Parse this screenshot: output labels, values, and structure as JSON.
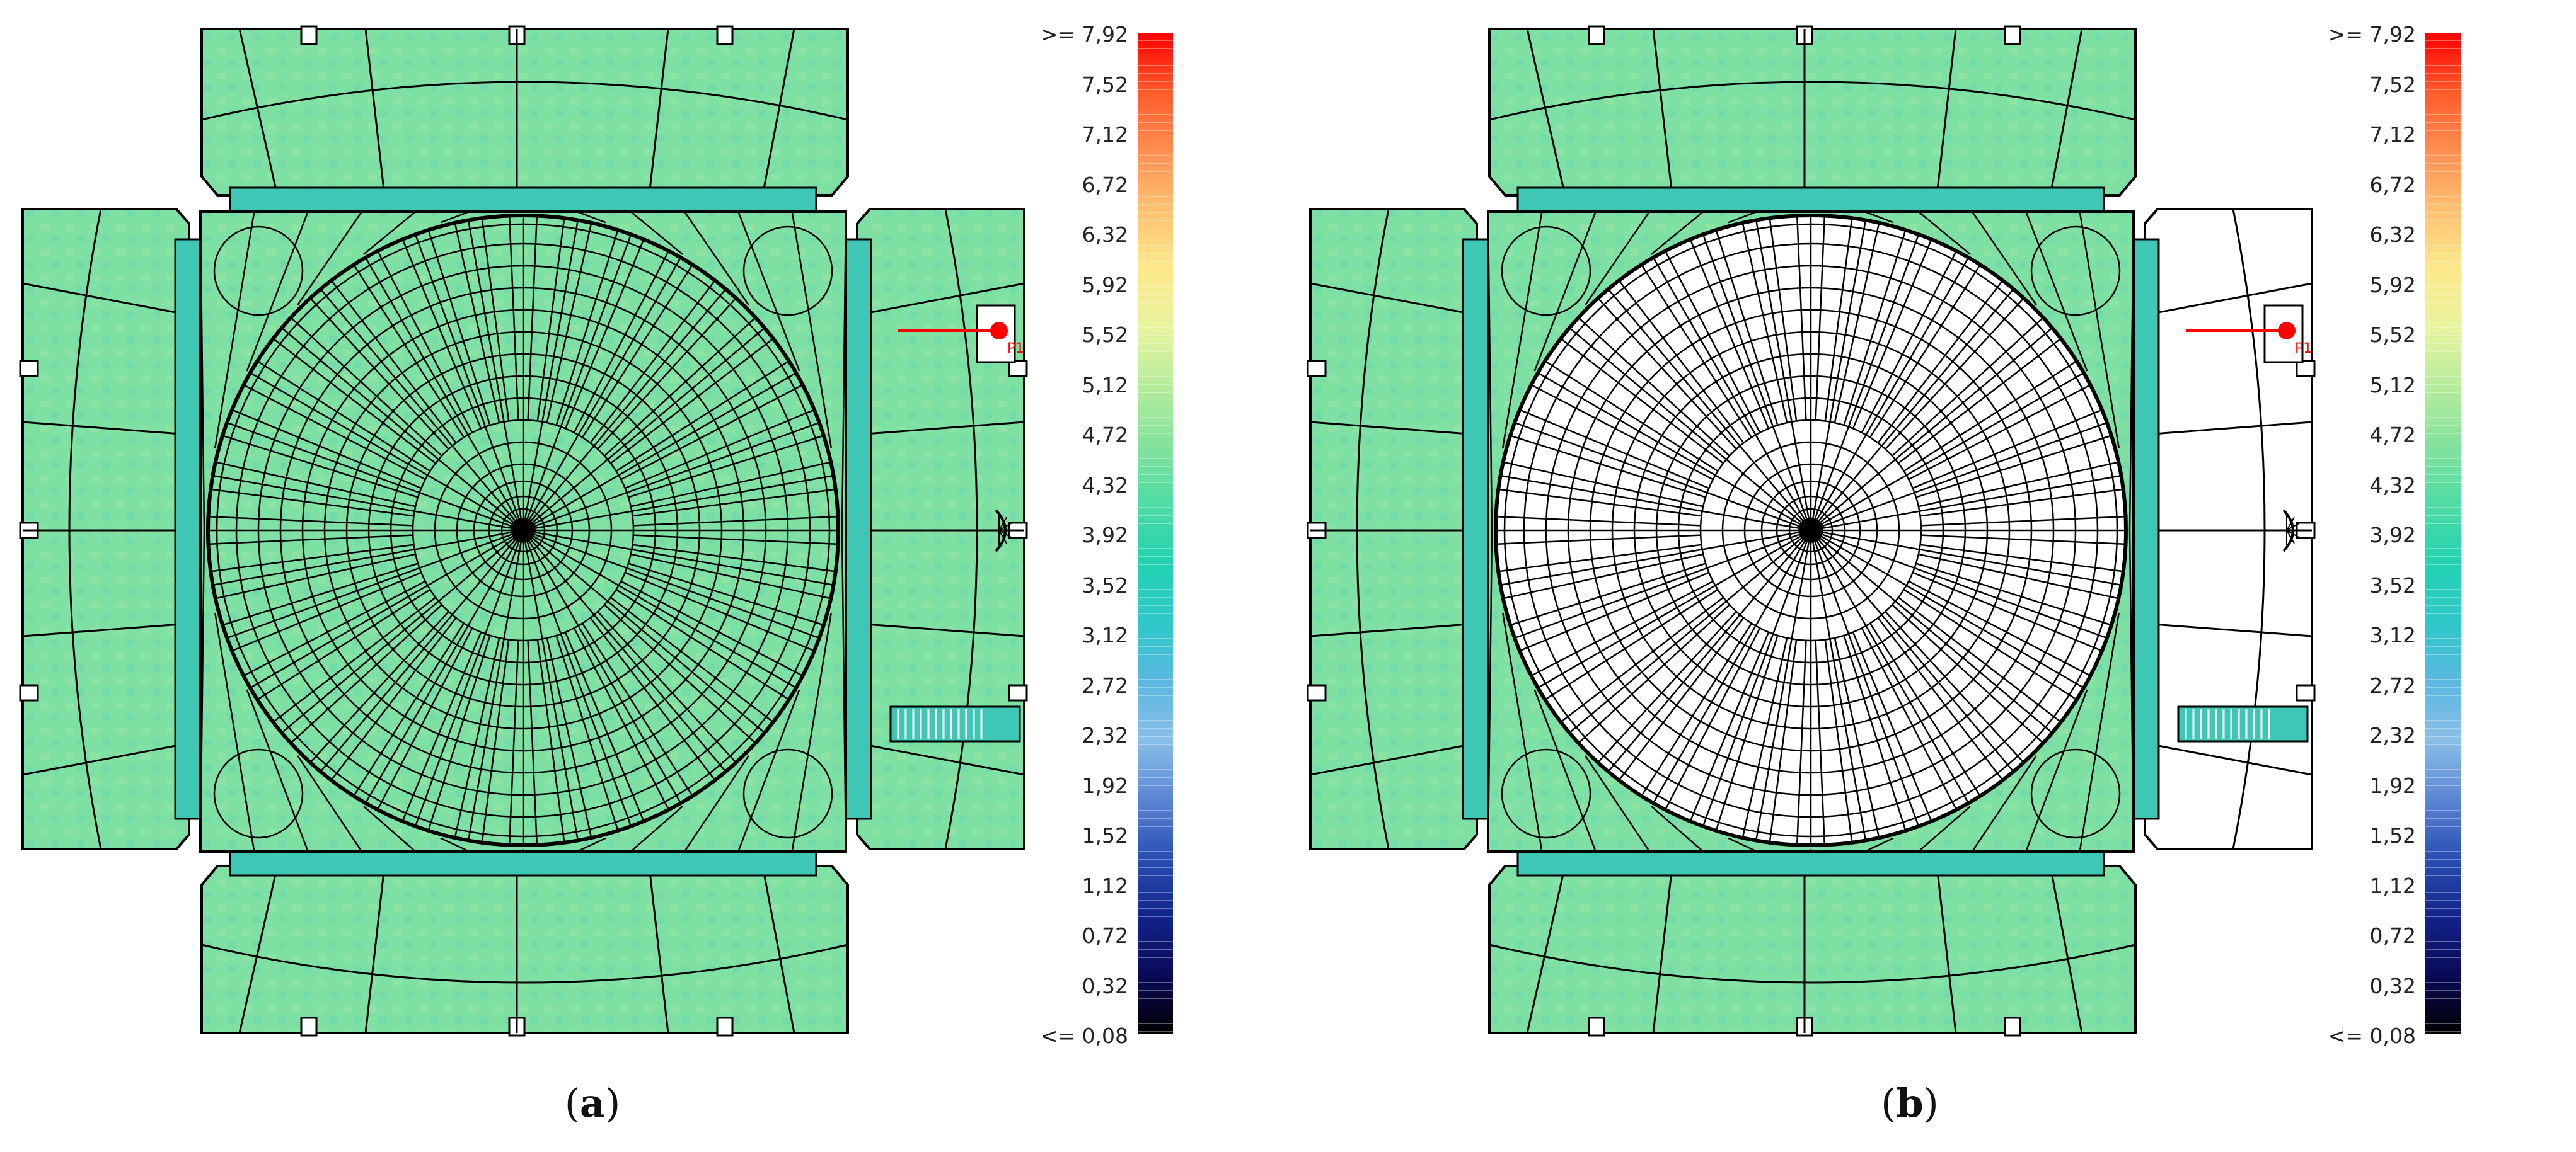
{
  "figure": {
    "panels": [
      {
        "id": "a",
        "caption_open": "(",
        "caption_letter": "a",
        "caption_close": ")",
        "dome_fill": "#7fe0a3",
        "right_wing_fill": "#7fe0a3"
      },
      {
        "id": "b",
        "caption_open": "(",
        "caption_letter": "b",
        "caption_close": ")",
        "dome_fill": "#ffffff",
        "right_wing_fill": "#ffffff"
      }
    ],
    "color_scale": {
      "labels": [
        ">= 7,92",
        "7,52",
        "7,12",
        "6,72",
        "6,32",
        "5,92",
        "5,52",
        "5,12",
        "4,72",
        "4,32",
        "3,92",
        "3,52",
        "3,12",
        "2,72",
        "2,32",
        "1,92",
        "1,52",
        "1,12",
        "0,72",
        "0,32",
        "<= 0,08"
      ],
      "colors_top_to_bottom": [
        "#ff0000",
        "#ff5a2a",
        "#ff8f52",
        "#ffc070",
        "#fde88a",
        "#e8f4a0",
        "#b6ec9c",
        "#84e29c",
        "#4fdba4",
        "#22d2b0",
        "#2ec8c8",
        "#5ab8e0",
        "#8abfe8",
        "#5c86d4",
        "#2a4fb4",
        "#12248c",
        "#0a0a58",
        "#000000"
      ]
    },
    "plan": {
      "fill_main": "#7fe0a3",
      "fill_edge": "#b9ec93",
      "fill_band": "#3ec7b4",
      "line_color": "#000000",
      "marker_color": "#ff0000",
      "marker_label": "P1"
    }
  }
}
